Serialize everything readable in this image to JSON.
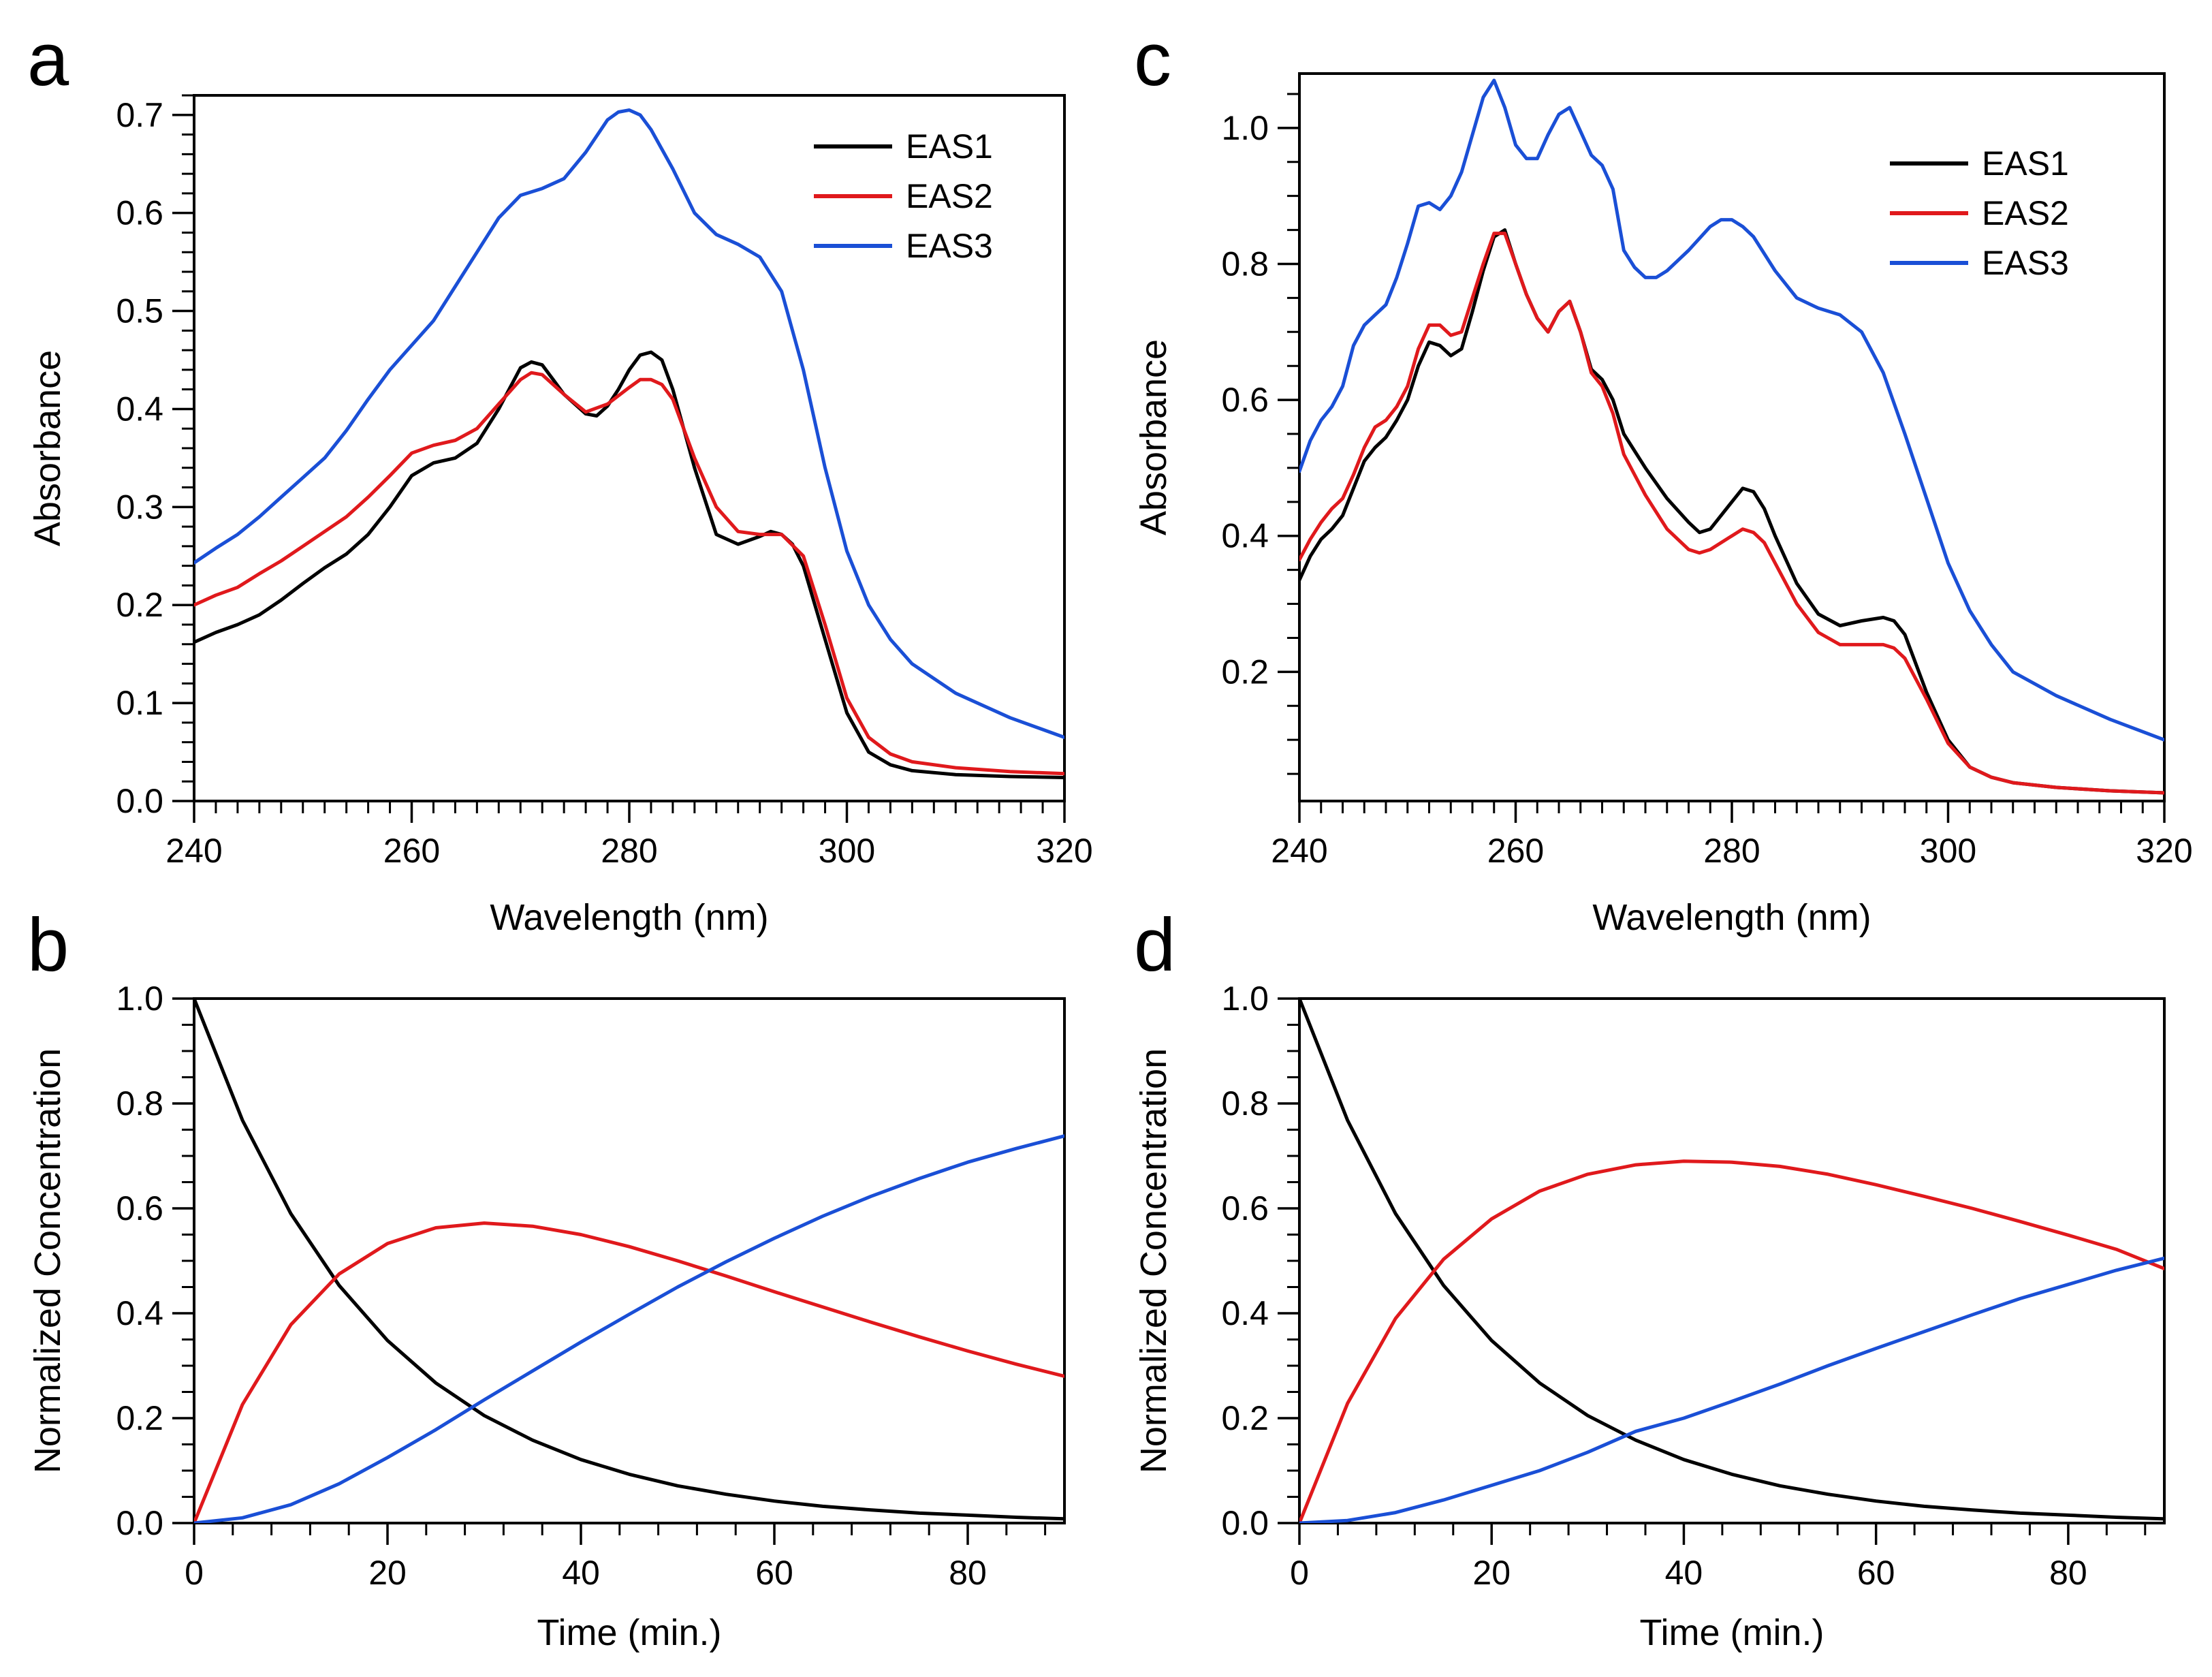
{
  "colors": {
    "EAS1": "#000000",
    "EAS2": "#e0191c",
    "EAS3": "#1a4fd6"
  },
  "chart_data": [
    {
      "id": "a",
      "panel_letter": "a",
      "type": "line",
      "xlabel": "Wavelength (nm)",
      "ylabel": "Absorbance",
      "xlim": [
        240,
        320
      ],
      "ylim": [
        0,
        0.72
      ],
      "xticks": [
        240,
        260,
        280,
        300,
        320
      ],
      "xtick_labels": [
        "240",
        "260",
        "280",
        "300",
        "320"
      ],
      "xminor_step": 2,
      "yticks": [
        0,
        0.1,
        0.2,
        0.3,
        0.4,
        0.5,
        0.6,
        0.7
      ],
      "ytick_labels": [
        "0.0",
        "0.1",
        "0.2",
        "0.3",
        "0.4",
        "0.5",
        "0.6",
        "0.7"
      ],
      "yminor_step": 0.02,
      "legend": {
        "position": "top-right",
        "labels": [
          "EAS1",
          "EAS2",
          "EAS3"
        ]
      },
      "series": [
        {
          "name": "EAS1",
          "color": "#000000",
          "x": [
            240,
            242,
            244,
            246,
            248,
            250,
            252,
            254,
            256,
            258,
            260,
            262,
            264,
            266,
            268,
            270,
            271,
            272,
            273,
            274,
            276,
            277,
            278,
            279,
            280,
            281,
            282,
            283,
            284,
            286,
            288,
            290,
            292,
            293,
            294,
            295,
            296,
            298,
            300,
            302,
            304,
            306,
            310,
            315,
            320
          ],
          "y": [
            0.162,
            0.172,
            0.18,
            0.19,
            0.205,
            0.222,
            0.238,
            0.252,
            0.272,
            0.3,
            0.332,
            0.345,
            0.35,
            0.365,
            0.4,
            0.442,
            0.448,
            0.445,
            0.43,
            0.415,
            0.395,
            0.393,
            0.403,
            0.42,
            0.44,
            0.455,
            0.458,
            0.45,
            0.42,
            0.34,
            0.272,
            0.262,
            0.27,
            0.275,
            0.272,
            0.262,
            0.24,
            0.165,
            0.09,
            0.05,
            0.037,
            0.031,
            0.027,
            0.025,
            0.024
          ]
        },
        {
          "name": "EAS2",
          "color": "#e0191c",
          "x": [
            240,
            242,
            244,
            246,
            248,
            250,
            252,
            254,
            256,
            258,
            260,
            262,
            264,
            266,
            268,
            270,
            271,
            272,
            274,
            276,
            278,
            280,
            281,
            282,
            283,
            284,
            286,
            288,
            290,
            292,
            294,
            296,
            298,
            300,
            302,
            304,
            306,
            310,
            315,
            320
          ],
          "y": [
            0.2,
            0.21,
            0.218,
            0.232,
            0.245,
            0.26,
            0.275,
            0.29,
            0.31,
            0.332,
            0.355,
            0.363,
            0.368,
            0.38,
            0.405,
            0.43,
            0.437,
            0.435,
            0.415,
            0.397,
            0.405,
            0.422,
            0.43,
            0.43,
            0.425,
            0.41,
            0.35,
            0.3,
            0.275,
            0.272,
            0.272,
            0.25,
            0.18,
            0.105,
            0.065,
            0.048,
            0.04,
            0.034,
            0.03,
            0.028
          ]
        },
        {
          "name": "EAS3",
          "color": "#1a4fd6",
          "x": [
            240,
            242,
            244,
            246,
            248,
            250,
            252,
            254,
            256,
            258,
            260,
            262,
            264,
            266,
            268,
            270,
            272,
            274,
            276,
            278,
            279,
            280,
            281,
            282,
            284,
            286,
            288,
            290,
            292,
            294,
            296,
            298,
            300,
            302,
            304,
            306,
            310,
            315,
            320
          ],
          "y": [
            0.243,
            0.258,
            0.272,
            0.29,
            0.31,
            0.33,
            0.35,
            0.378,
            0.41,
            0.44,
            0.465,
            0.49,
            0.525,
            0.56,
            0.595,
            0.618,
            0.625,
            0.635,
            0.662,
            0.695,
            0.703,
            0.705,
            0.7,
            0.685,
            0.645,
            0.6,
            0.578,
            0.568,
            0.555,
            0.52,
            0.44,
            0.34,
            0.255,
            0.2,
            0.165,
            0.14,
            0.11,
            0.085,
            0.065
          ]
        }
      ]
    },
    {
      "id": "b",
      "panel_letter": "b",
      "type": "line",
      "xlabel": "Time (min.)",
      "ylabel": "Normalized Concentration",
      "xlim": [
        0,
        90
      ],
      "ylim": [
        0,
        1.0
      ],
      "xticks": [
        0,
        20,
        40,
        60,
        80
      ],
      "xtick_labels": [
        "0",
        "20",
        "40",
        "60",
        "80"
      ],
      "xminor_step": 4,
      "yticks": [
        0,
        0.2,
        0.4,
        0.6,
        0.8,
        1.0
      ],
      "ytick_labels": [
        "0.0",
        "0.2",
        "0.4",
        "0.6",
        "0.8",
        "1.0"
      ],
      "yminor_step": 0.05,
      "series": [
        {
          "name": "EAS1",
          "color": "#000000",
          "x": [
            0,
            5,
            10,
            15,
            20,
            25,
            30,
            35,
            40,
            45,
            50,
            55,
            60,
            65,
            70,
            75,
            80,
            85,
            90
          ],
          "y": [
            1.0,
            0.768,
            0.59,
            0.453,
            0.348,
            0.267,
            0.205,
            0.158,
            0.121,
            0.093,
            0.071,
            0.055,
            0.042,
            0.032,
            0.025,
            0.019,
            0.015,
            0.011,
            0.008
          ]
        },
        {
          "name": "EAS2",
          "color": "#e0191c",
          "x": [
            0,
            5,
            10,
            15,
            20,
            25,
            30,
            35,
            40,
            45,
            50,
            55,
            60,
            65,
            70,
            75,
            80,
            85,
            90
          ],
          "y": [
            0.0,
            0.226,
            0.378,
            0.475,
            0.533,
            0.563,
            0.572,
            0.566,
            0.55,
            0.527,
            0.5,
            0.471,
            0.441,
            0.412,
            0.383,
            0.355,
            0.328,
            0.303,
            0.28
          ]
        },
        {
          "name": "EAS3",
          "color": "#1a4fd6",
          "x": [
            0,
            5,
            10,
            15,
            20,
            25,
            30,
            35,
            40,
            45,
            50,
            55,
            60,
            65,
            70,
            75,
            80,
            85,
            90
          ],
          "y": [
            0.0,
            0.01,
            0.035,
            0.075,
            0.125,
            0.178,
            0.235,
            0.29,
            0.345,
            0.398,
            0.45,
            0.498,
            0.543,
            0.585,
            0.623,
            0.657,
            0.688,
            0.714,
            0.738
          ]
        }
      ]
    },
    {
      "id": "c",
      "panel_letter": "c",
      "type": "line",
      "xlabel": "Wavelength (nm)",
      "ylabel": "Absorbance",
      "xlim": [
        240,
        320
      ],
      "ylim": [
        0.01,
        1.08
      ],
      "xticks": [
        240,
        260,
        280,
        300,
        320
      ],
      "xtick_labels": [
        "240",
        "260",
        "280",
        "300",
        "320"
      ],
      "xminor_step": 2,
      "yticks": [
        0.2,
        0.4,
        0.6,
        0.8,
        1.0
      ],
      "ytick_labels": [
        "0.2",
        "0.4",
        "0.6",
        "0.8",
        "1.0"
      ],
      "yminor_step": 0.05,
      "legend": {
        "position": "top-right",
        "labels": [
          "EAS1",
          "EAS2",
          "EAS3"
        ]
      },
      "series": [
        {
          "name": "EAS1",
          "color": "#000000",
          "x": [
            240,
            241,
            242,
            243,
            244,
            245,
            246,
            247,
            248,
            249,
            250,
            251,
            252,
            253,
            254,
            255,
            256,
            257,
            258,
            259,
            260,
            261,
            262,
            263,
            264,
            265,
            266,
            267,
            268,
            269,
            270,
            272,
            274,
            276,
            277,
            278,
            280,
            281,
            282,
            283,
            284,
            286,
            288,
            290,
            292,
            294,
            295,
            296,
            298,
            300,
            302,
            304,
            306,
            310,
            315,
            320
          ],
          "y": [
            0.335,
            0.37,
            0.395,
            0.41,
            0.43,
            0.47,
            0.51,
            0.53,
            0.545,
            0.57,
            0.6,
            0.65,
            0.685,
            0.68,
            0.665,
            0.675,
            0.73,
            0.79,
            0.84,
            0.85,
            0.8,
            0.755,
            0.72,
            0.7,
            0.73,
            0.745,
            0.7,
            0.645,
            0.63,
            0.6,
            0.55,
            0.5,
            0.455,
            0.42,
            0.405,
            0.41,
            0.45,
            0.47,
            0.465,
            0.44,
            0.4,
            0.33,
            0.285,
            0.268,
            0.275,
            0.28,
            0.275,
            0.255,
            0.17,
            0.1,
            0.06,
            0.045,
            0.037,
            0.03,
            0.025,
            0.022
          ]
        },
        {
          "name": "EAS2",
          "color": "#e0191c",
          "x": [
            240,
            241,
            242,
            243,
            244,
            245,
            246,
            247,
            248,
            249,
            250,
            251,
            252,
            253,
            254,
            255,
            256,
            257,
            258,
            259,
            260,
            261,
            262,
            263,
            264,
            265,
            266,
            267,
            268,
            269,
            270,
            272,
            274,
            276,
            277,
            278,
            280,
            281,
            282,
            283,
            284,
            286,
            288,
            290,
            292,
            294,
            295,
            296,
            298,
            300,
            302,
            304,
            306,
            310,
            315,
            320
          ],
          "y": [
            0.365,
            0.395,
            0.42,
            0.44,
            0.455,
            0.49,
            0.53,
            0.56,
            0.57,
            0.59,
            0.62,
            0.675,
            0.71,
            0.71,
            0.695,
            0.7,
            0.75,
            0.8,
            0.845,
            0.845,
            0.8,
            0.755,
            0.72,
            0.7,
            0.73,
            0.745,
            0.7,
            0.64,
            0.62,
            0.58,
            0.52,
            0.46,
            0.41,
            0.38,
            0.375,
            0.38,
            0.4,
            0.41,
            0.405,
            0.39,
            0.36,
            0.3,
            0.258,
            0.24,
            0.24,
            0.24,
            0.235,
            0.22,
            0.16,
            0.095,
            0.06,
            0.045,
            0.037,
            0.03,
            0.025,
            0.022
          ]
        },
        {
          "name": "EAS3",
          "color": "#1a4fd6",
          "x": [
            240,
            241,
            242,
            243,
            244,
            245,
            246,
            247,
            248,
            249,
            250,
            251,
            252,
            253,
            254,
            255,
            256,
            257,
            258,
            259,
            260,
            261,
            262,
            263,
            264,
            265,
            266,
            267,
            268,
            269,
            270,
            271,
            272,
            273,
            274,
            276,
            278,
            279,
            280,
            281,
            282,
            284,
            286,
            288,
            290,
            292,
            294,
            296,
            298,
            300,
            302,
            304,
            306,
            310,
            315,
            320
          ],
          "y": [
            0.495,
            0.54,
            0.57,
            0.59,
            0.62,
            0.68,
            0.71,
            0.725,
            0.74,
            0.78,
            0.83,
            0.885,
            0.89,
            0.88,
            0.9,
            0.935,
            0.99,
            1.045,
            1.07,
            1.03,
            0.975,
            0.955,
            0.955,
            0.99,
            1.02,
            1.03,
            0.995,
            0.96,
            0.945,
            0.91,
            0.82,
            0.795,
            0.78,
            0.78,
            0.79,
            0.82,
            0.855,
            0.865,
            0.865,
            0.855,
            0.84,
            0.79,
            0.75,
            0.735,
            0.725,
            0.7,
            0.64,
            0.55,
            0.455,
            0.36,
            0.29,
            0.24,
            0.2,
            0.165,
            0.13,
            0.1
          ]
        }
      ]
    },
    {
      "id": "d",
      "panel_letter": "d",
      "type": "line",
      "xlabel": "Time (min.)",
      "ylabel": "Normalized Concentration",
      "xlim": [
        0,
        90
      ],
      "ylim": [
        0,
        1.0
      ],
      "xticks": [
        0,
        20,
        40,
        60,
        80
      ],
      "xtick_labels": [
        "0",
        "20",
        "40",
        "60",
        "80"
      ],
      "xminor_step": 4,
      "yticks": [
        0,
        0.2,
        0.4,
        0.6,
        0.8,
        1.0
      ],
      "ytick_labels": [
        "0.0",
        "0.2",
        "0.4",
        "0.6",
        "0.8",
        "1.0"
      ],
      "yminor_step": 0.05,
      "series": [
        {
          "name": "EAS1",
          "color": "#000000",
          "x": [
            0,
            5,
            10,
            15,
            20,
            25,
            30,
            35,
            40,
            45,
            50,
            55,
            60,
            65,
            70,
            75,
            80,
            85,
            90
          ],
          "y": [
            1.0,
            0.768,
            0.59,
            0.453,
            0.348,
            0.267,
            0.205,
            0.158,
            0.121,
            0.093,
            0.071,
            0.055,
            0.042,
            0.032,
            0.025,
            0.019,
            0.015,
            0.011,
            0.008
          ]
        },
        {
          "name": "EAS2",
          "color": "#e0191c",
          "x": [
            0,
            5,
            10,
            15,
            20,
            25,
            30,
            35,
            40,
            45,
            50,
            55,
            60,
            65,
            70,
            75,
            80,
            85,
            90
          ],
          "y": [
            0.0,
            0.228,
            0.39,
            0.503,
            0.58,
            0.633,
            0.665,
            0.683,
            0.69,
            0.688,
            0.68,
            0.665,
            0.645,
            0.623,
            0.6,
            0.575,
            0.549,
            0.522,
            0.485
          ]
        },
        {
          "name": "EAS3",
          "color": "#1a4fd6",
          "x": [
            0,
            5,
            10,
            15,
            20,
            25,
            30,
            35,
            40,
            45,
            50,
            55,
            60,
            65,
            70,
            75,
            80,
            85,
            90
          ],
          "y": [
            0.0,
            0.005,
            0.02,
            0.044,
            0.072,
            0.1,
            0.135,
            0.175,
            0.2,
            0.232,
            0.265,
            0.3,
            0.333,
            0.365,
            0.397,
            0.428,
            0.455,
            0.482,
            0.505
          ]
        }
      ]
    }
  ]
}
